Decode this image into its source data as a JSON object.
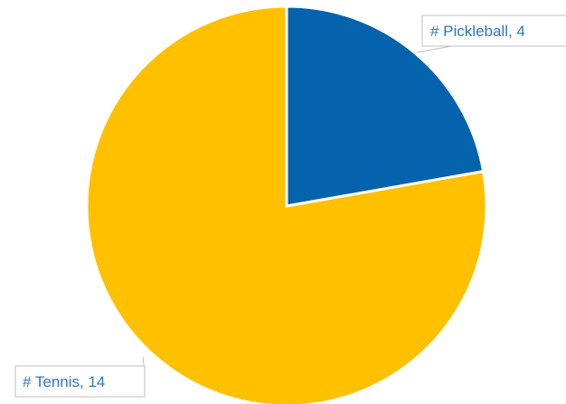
{
  "chart_data": {
    "type": "pie",
    "title": "",
    "categories": [
      "# Pickleball",
      "# Tennis"
    ],
    "values": [
      4,
      14
    ],
    "data_labels": [
      "# Pickleball, 4",
      "# Tennis, 14"
    ],
    "colors": [
      "#0563AE",
      "#FFC000"
    ],
    "label_text_color": "#2E75CD",
    "label_border_color": "#BFBFBF",
    "leader_line_color": "#BFBFBF",
    "legend": "none",
    "grid": false
  }
}
